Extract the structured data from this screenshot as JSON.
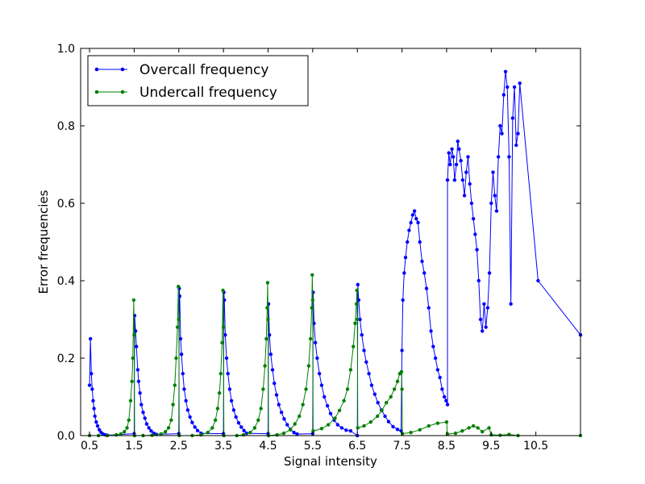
{
  "chart_data": {
    "type": "line",
    "title": "",
    "xlabel": "Signal intensity",
    "ylabel": "Error frequencies",
    "xlim": [
      0.3,
      11.5
    ],
    "ylim": [
      0.0,
      1.0
    ],
    "xticks": [
      0.5,
      1.5,
      2.5,
      3.5,
      4.5,
      5.5,
      6.5,
      7.5,
      8.5,
      9.5,
      10.5
    ],
    "xtick_labels": [
      "0.5",
      "1.5",
      "2.5",
      "3.5",
      "4.5",
      "5.5",
      "6.5",
      "7.5",
      "8.5",
      "9.5",
      "10.5"
    ],
    "yticks": [
      0.0,
      0.2,
      0.4,
      0.6,
      0.8,
      1.0
    ],
    "ytick_labels": [
      "0.0",
      "0.2",
      "0.4",
      "0.6",
      "0.8",
      "1.0"
    ],
    "grid": false,
    "legend_position": "top-left",
    "series": [
      {
        "name": "Overcall frequency",
        "color": "#0000ff",
        "points": [
          [
            0.5,
            0.13
          ],
          [
            0.52,
            0.25
          ],
          [
            0.54,
            0.16
          ],
          [
            0.56,
            0.12
          ],
          [
            0.58,
            0.09
          ],
          [
            0.6,
            0.07
          ],
          [
            0.62,
            0.05
          ],
          [
            0.65,
            0.035
          ],
          [
            0.68,
            0.025
          ],
          [
            0.72,
            0.015
          ],
          [
            0.76,
            0.008
          ],
          [
            0.8,
            0.004
          ],
          [
            0.85,
            0.002
          ],
          [
            0.9,
            0.001
          ],
          [
            1.5,
            0.005
          ],
          [
            1.51,
            0.31
          ],
          [
            1.53,
            0.27
          ],
          [
            1.55,
            0.23
          ],
          [
            1.58,
            0.17
          ],
          [
            1.6,
            0.14
          ],
          [
            1.63,
            0.11
          ],
          [
            1.66,
            0.08
          ],
          [
            1.7,
            0.06
          ],
          [
            1.74,
            0.045
          ],
          [
            1.78,
            0.03
          ],
          [
            1.83,
            0.02
          ],
          [
            1.88,
            0.012
          ],
          [
            1.94,
            0.006
          ],
          [
            2.0,
            0.003
          ],
          [
            2.5,
            0.005
          ],
          [
            2.51,
            0.38
          ],
          [
            2.52,
            0.36
          ],
          [
            2.54,
            0.25
          ],
          [
            2.56,
            0.21
          ],
          [
            2.59,
            0.16
          ],
          [
            2.62,
            0.12
          ],
          [
            2.66,
            0.09
          ],
          [
            2.7,
            0.066
          ],
          [
            2.75,
            0.048
          ],
          [
            2.8,
            0.034
          ],
          [
            2.86,
            0.022
          ],
          [
            2.92,
            0.013
          ],
          [
            3.0,
            0.006
          ],
          [
            3.5,
            0.005
          ],
          [
            3.51,
            0.37
          ],
          [
            3.52,
            0.35
          ],
          [
            3.54,
            0.26
          ],
          [
            3.57,
            0.2
          ],
          [
            3.6,
            0.16
          ],
          [
            3.64,
            0.12
          ],
          [
            3.68,
            0.09
          ],
          [
            3.73,
            0.066
          ],
          [
            3.78,
            0.048
          ],
          [
            3.84,
            0.033
          ],
          [
            3.9,
            0.022
          ],
          [
            3.96,
            0.013
          ],
          [
            4.02,
            0.006
          ],
          [
            4.5,
            0.005
          ],
          [
            4.51,
            0.34
          ],
          [
            4.53,
            0.26
          ],
          [
            4.56,
            0.21
          ],
          [
            4.6,
            0.17
          ],
          [
            4.64,
            0.135
          ],
          [
            4.69,
            0.105
          ],
          [
            4.74,
            0.08
          ],
          [
            4.8,
            0.06
          ],
          [
            4.86,
            0.043
          ],
          [
            4.93,
            0.028
          ],
          [
            5.0,
            0.016
          ],
          [
            5.08,
            0.008
          ],
          [
            5.15,
            0.004
          ],
          [
            5.5,
            0.005
          ],
          [
            5.51,
            0.37
          ],
          [
            5.53,
            0.29
          ],
          [
            5.56,
            0.24
          ],
          [
            5.6,
            0.2
          ],
          [
            5.65,
            0.16
          ],
          [
            5.7,
            0.13
          ],
          [
            5.76,
            0.1
          ],
          [
            5.83,
            0.077
          ],
          [
            5.9,
            0.057
          ],
          [
            5.98,
            0.04
          ],
          [
            6.06,
            0.028
          ],
          [
            6.15,
            0.02
          ],
          [
            6.25,
            0.014
          ],
          [
            6.35,
            0.012
          ],
          [
            6.5,
            0.0
          ],
          [
            6.51,
            0.39
          ],
          [
            6.53,
            0.35
          ],
          [
            6.56,
            0.3
          ],
          [
            6.6,
            0.26
          ],
          [
            6.65,
            0.22
          ],
          [
            6.7,
            0.19
          ],
          [
            6.76,
            0.16
          ],
          [
            6.82,
            0.13
          ],
          [
            6.89,
            0.107
          ],
          [
            6.96,
            0.085
          ],
          [
            7.04,
            0.066
          ],
          [
            7.12,
            0.05
          ],
          [
            7.2,
            0.036
          ],
          [
            7.3,
            0.023
          ],
          [
            7.4,
            0.016
          ],
          [
            7.48,
            0.012
          ],
          [
            7.5,
            0.22
          ],
          [
            7.52,
            0.35
          ],
          [
            7.55,
            0.42
          ],
          [
            7.58,
            0.46
          ],
          [
            7.62,
            0.5
          ],
          [
            7.66,
            0.53
          ],
          [
            7.7,
            0.55
          ],
          [
            7.74,
            0.57
          ],
          [
            7.78,
            0.58
          ],
          [
            7.82,
            0.56
          ],
          [
            7.86,
            0.55
          ],
          [
            7.9,
            0.5
          ],
          [
            7.95,
            0.45
          ],
          [
            8.0,
            0.42
          ],
          [
            8.05,
            0.38
          ],
          [
            8.1,
            0.33
          ],
          [
            8.15,
            0.27
          ],
          [
            8.2,
            0.23
          ],
          [
            8.25,
            0.2
          ],
          [
            8.3,
            0.17
          ],
          [
            8.35,
            0.15
          ],
          [
            8.4,
            0.12
          ],
          [
            8.45,
            0.1
          ],
          [
            8.49,
            0.09
          ],
          [
            8.52,
            0.08
          ],
          [
            8.52,
            0.66
          ],
          [
            8.55,
            0.73
          ],
          [
            8.58,
            0.7
          ],
          [
            8.62,
            0.74
          ],
          [
            8.65,
            0.72
          ],
          [
            8.68,
            0.66
          ],
          [
            8.72,
            0.7
          ],
          [
            8.75,
            0.76
          ],
          [
            8.78,
            0.74
          ],
          [
            8.82,
            0.71
          ],
          [
            8.86,
            0.66
          ],
          [
            8.9,
            0.62
          ],
          [
            8.94,
            0.68
          ],
          [
            8.98,
            0.72
          ],
          [
            9.02,
            0.65
          ],
          [
            9.06,
            0.6
          ],
          [
            9.1,
            0.56
          ],
          [
            9.14,
            0.52
          ],
          [
            9.18,
            0.48
          ],
          [
            9.22,
            0.4
          ],
          [
            9.26,
            0.3
          ],
          [
            9.3,
            0.27
          ],
          [
            9.34,
            0.34
          ],
          [
            9.38,
            0.28
          ],
          [
            9.42,
            0.33
          ],
          [
            9.46,
            0.42
          ],
          [
            9.5,
            0.6
          ],
          [
            9.54,
            0.68
          ],
          [
            9.58,
            0.62
          ],
          [
            9.62,
            0.58
          ],
          [
            9.66,
            0.72
          ],
          [
            9.7,
            0.8
          ],
          [
            9.74,
            0.78
          ],
          [
            9.78,
            0.88
          ],
          [
            9.82,
            0.94
          ],
          [
            9.86,
            0.9
          ],
          [
            9.9,
            0.72
          ],
          [
            9.94,
            0.34
          ],
          [
            9.98,
            0.82
          ],
          [
            10.02,
            0.9
          ],
          [
            10.06,
            0.75
          ],
          [
            10.1,
            0.78
          ],
          [
            10.14,
            0.91
          ],
          [
            10.55,
            0.4
          ],
          [
            11.5,
            0.26
          ]
        ]
      },
      {
        "name": "Undercall frequency",
        "color": "#008000",
        "points": [
          [
            0.5,
            0.0
          ],
          [
            0.7,
            0.0
          ],
          [
            0.9,
            0.0
          ],
          [
            1.1,
            0.002
          ],
          [
            1.2,
            0.004
          ],
          [
            1.28,
            0.01
          ],
          [
            1.34,
            0.02
          ],
          [
            1.38,
            0.04
          ],
          [
            1.42,
            0.09
          ],
          [
            1.45,
            0.14
          ],
          [
            1.47,
            0.2
          ],
          [
            1.49,
            0.35
          ],
          [
            1.5,
            0.26
          ],
          [
            1.51,
            0.0
          ],
          [
            1.7,
            0.0
          ],
          [
            1.9,
            0.001
          ],
          [
            2.1,
            0.004
          ],
          [
            2.2,
            0.01
          ],
          [
            2.27,
            0.02
          ],
          [
            2.33,
            0.04
          ],
          [
            2.37,
            0.08
          ],
          [
            2.41,
            0.13
          ],
          [
            2.44,
            0.2
          ],
          [
            2.47,
            0.28
          ],
          [
            2.49,
            0.385
          ],
          [
            2.5,
            0.3
          ],
          [
            2.51,
            0.0
          ],
          [
            2.8,
            0.0
          ],
          [
            3.0,
            0.002
          ],
          [
            3.15,
            0.008
          ],
          [
            3.25,
            0.02
          ],
          [
            3.32,
            0.04
          ],
          [
            3.37,
            0.07
          ],
          [
            3.41,
            0.11
          ],
          [
            3.44,
            0.16
          ],
          [
            3.47,
            0.24
          ],
          [
            3.49,
            0.375
          ],
          [
            3.5,
            0.28
          ],
          [
            3.51,
            0.0
          ],
          [
            3.8,
            0.0
          ],
          [
            3.95,
            0.002
          ],
          [
            4.1,
            0.008
          ],
          [
            4.2,
            0.02
          ],
          [
            4.28,
            0.04
          ],
          [
            4.34,
            0.07
          ],
          [
            4.39,
            0.12
          ],
          [
            4.43,
            0.18
          ],
          [
            4.46,
            0.25
          ],
          [
            4.48,
            0.33
          ],
          [
            4.49,
            0.395
          ],
          [
            4.5,
            0.3
          ],
          [
            4.51,
            0.0
          ],
          [
            4.7,
            0.002
          ],
          [
            4.85,
            0.006
          ],
          [
            5.0,
            0.015
          ],
          [
            5.1,
            0.03
          ],
          [
            5.2,
            0.05
          ],
          [
            5.28,
            0.08
          ],
          [
            5.35,
            0.12
          ],
          [
            5.41,
            0.18
          ],
          [
            5.45,
            0.25
          ],
          [
            5.48,
            0.33
          ],
          [
            5.49,
            0.415
          ],
          [
            5.5,
            0.35
          ],
          [
            5.51,
            0.012
          ],
          [
            5.7,
            0.018
          ],
          [
            5.85,
            0.028
          ],
          [
            6.0,
            0.045
          ],
          [
            6.1,
            0.065
          ],
          [
            6.2,
            0.09
          ],
          [
            6.28,
            0.12
          ],
          [
            6.35,
            0.17
          ],
          [
            6.41,
            0.23
          ],
          [
            6.45,
            0.29
          ],
          [
            6.48,
            0.34
          ],
          [
            6.49,
            0.375
          ],
          [
            6.5,
            0.3
          ],
          [
            6.51,
            0.02
          ],
          [
            6.65,
            0.025
          ],
          [
            6.8,
            0.035
          ],
          [
            6.95,
            0.05
          ],
          [
            7.05,
            0.065
          ],
          [
            7.15,
            0.085
          ],
          [
            7.25,
            0.1
          ],
          [
            7.33,
            0.12
          ],
          [
            7.4,
            0.14
          ],
          [
            7.45,
            0.16
          ],
          [
            7.49,
            0.165
          ],
          [
            7.5,
            0.12
          ],
          [
            7.51,
            0.005
          ],
          [
            7.7,
            0.008
          ],
          [
            7.9,
            0.015
          ],
          [
            8.1,
            0.025
          ],
          [
            8.3,
            0.032
          ],
          [
            8.5,
            0.035
          ],
          [
            8.52,
            0.004
          ],
          [
            8.7,
            0.006
          ],
          [
            8.85,
            0.012
          ],
          [
            9.0,
            0.02
          ],
          [
            9.1,
            0.025
          ],
          [
            9.2,
            0.02
          ],
          [
            9.3,
            0.01
          ],
          [
            9.45,
            0.02
          ],
          [
            9.5,
            0.002
          ],
          [
            9.7,
            0.001
          ],
          [
            9.9,
            0.003
          ],
          [
            10.1,
            0.0
          ],
          [
            11.5,
            0.0
          ]
        ]
      }
    ]
  }
}
